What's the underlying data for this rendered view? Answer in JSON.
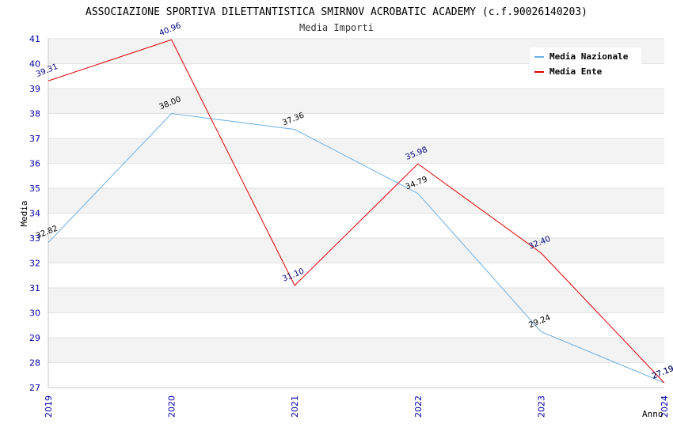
{
  "chart_data": {
    "type": "line",
    "title": "ASSOCIAZIONE SPORTIVA DILETTANTISTICA SMIRNOV ACROBATIC ACADEMY (c.f.90026140203)",
    "subtitle": "Media Importi",
    "xlabel": "Anno",
    "ylabel": "Media",
    "x": [
      "2019",
      "2020",
      "2021",
      "2022",
      "2023",
      "2024"
    ],
    "ylim": [
      27,
      41
    ],
    "yticks": [
      "27",
      "28",
      "29",
      "30",
      "31",
      "32",
      "33",
      "34",
      "35",
      "36",
      "37",
      "38",
      "39",
      "40",
      "41"
    ],
    "grid": true,
    "legend_position": "top-right",
    "series": [
      {
        "name": "Media Nazionale",
        "color": "#6aafe6",
        "label_color": "#000000",
        "values": [
          32.82,
          38.0,
          37.36,
          34.79,
          29.24,
          27.19
        ],
        "labels": [
          "32.82",
          "38.00",
          "37.36",
          "34.79",
          "29.24",
          "27.19"
        ]
      },
      {
        "name": "Media Ente",
        "color": "#e00000",
        "label_color": "#00007a",
        "values": [
          39.31,
          40.96,
          31.1,
          35.98,
          32.4,
          27.19
        ],
        "labels": [
          "39.31",
          "40.96",
          "31.10",
          "35.98",
          "32.40",
          "27.19"
        ]
      }
    ]
  }
}
